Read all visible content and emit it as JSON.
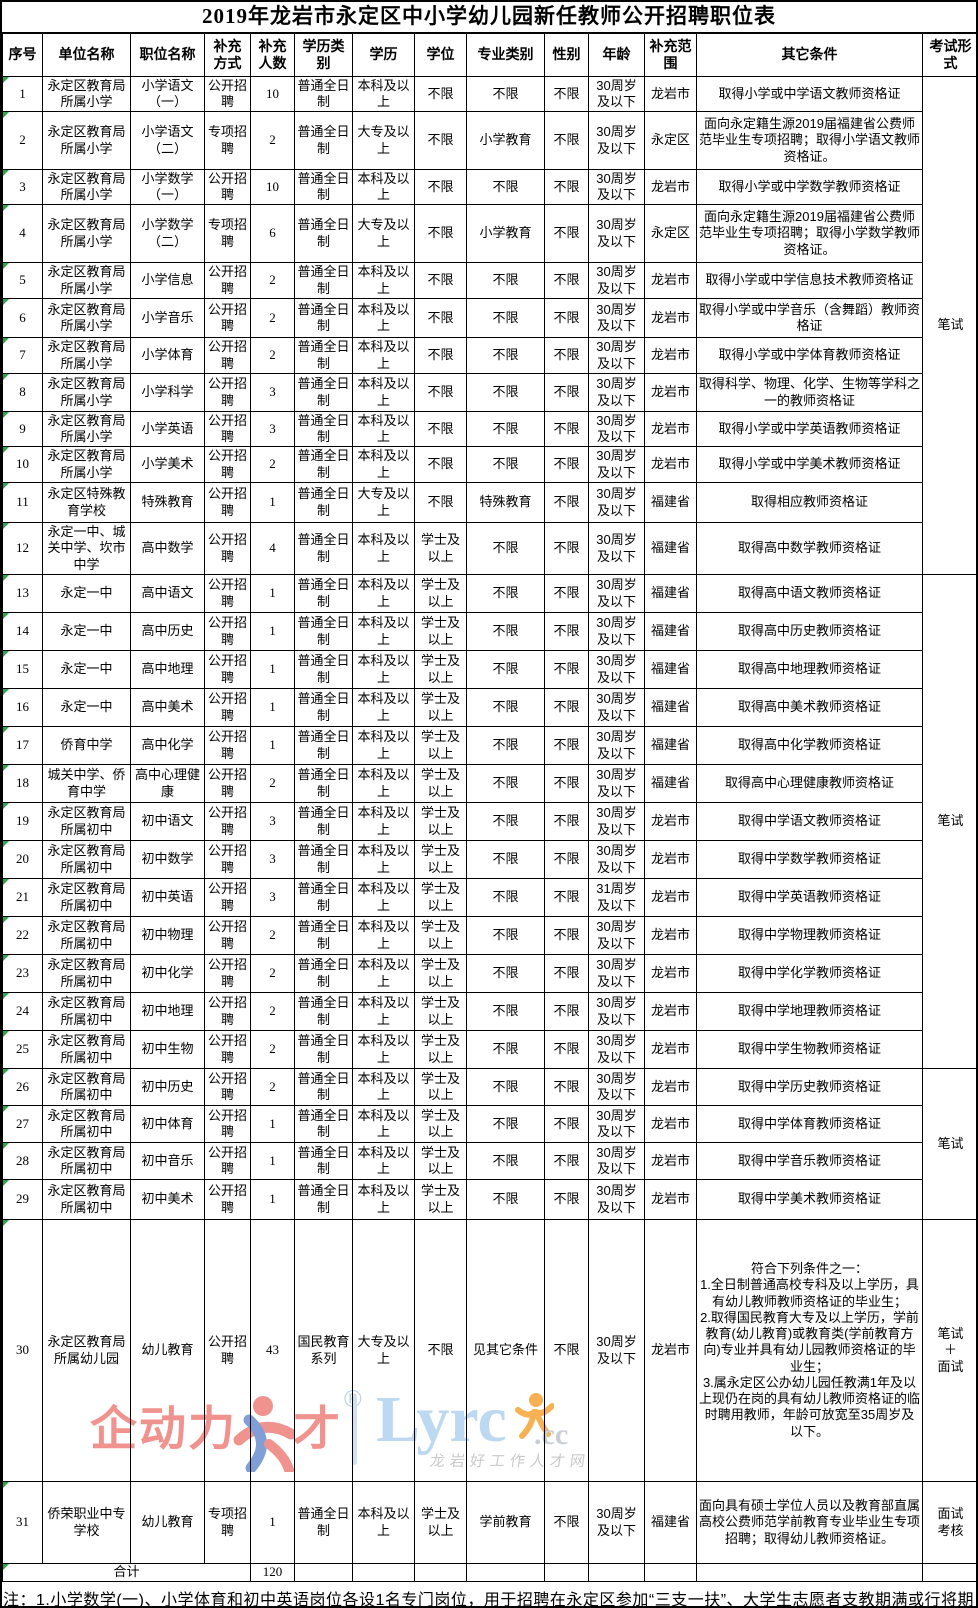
{
  "title": "2019年龙岩市永定区中小学幼儿园新任教师公开招聘职位表",
  "table": {
    "headers": [
      "序号",
      "单位名称",
      "职位名称",
      "补充方式",
      "补充人数",
      "学历类别",
      "学历",
      "学位",
      "专业类别",
      "性别",
      "年龄",
      "补充范围",
      "其它条件",
      "考试形式"
    ],
    "rows": [
      {
        "num": "1",
        "unit": "永定区教育局所属小学",
        "position": "小学语文（一）",
        "method": "公开招聘",
        "count": "10",
        "edu_type": "普通全日制",
        "edu": "本科及以上",
        "degree": "不限",
        "major": "不限",
        "gender": "不限",
        "age": "30周岁及以下",
        "scope": "龙岩市",
        "other": "取得小学或中学语文教师资格证"
      },
      {
        "num": "2",
        "unit": "永定区教育局所属小学",
        "position": "小学语文（二）",
        "method": "专项招聘",
        "count": "2",
        "edu_type": "普通全日制",
        "edu": "大专及以上",
        "degree": "不限",
        "major": "小学教育",
        "gender": "不限",
        "age": "30周岁及以下",
        "scope": "永定区",
        "other": "面向永定籍生源2019届福建省公费师范毕业生专项招聘；取得小学语文教师资格证。"
      },
      {
        "num": "3",
        "unit": "永定区教育局所属小学",
        "position": "小学数学（一）",
        "method": "公开招聘",
        "count": "10",
        "edu_type": "普通全日制",
        "edu": "本科及以上",
        "degree": "不限",
        "major": "不限",
        "gender": "不限",
        "age": "30周岁及以下",
        "scope": "龙岩市",
        "other": "取得小学或中学数学教师资格证"
      },
      {
        "num": "4",
        "unit": "永定区教育局所属小学",
        "position": "小学数学（二）",
        "method": "专项招聘",
        "count": "6",
        "edu_type": "普通全日制",
        "edu": "大专及以上",
        "degree": "不限",
        "major": "小学教育",
        "gender": "不限",
        "age": "30周岁及以下",
        "scope": "永定区",
        "other": "面向永定籍生源2019届福建省公费师范毕业生专项招聘；取得小学数学教师资格证。"
      },
      {
        "num": "5",
        "unit": "永定区教育局所属小学",
        "position": "小学信息",
        "method": "公开招聘",
        "count": "2",
        "edu_type": "普通全日制",
        "edu": "本科及以上",
        "degree": "不限",
        "major": "不限",
        "gender": "不限",
        "age": "30周岁及以下",
        "scope": "龙岩市",
        "other": "取得小学或中学信息技术教师资格证"
      },
      {
        "num": "6",
        "unit": "永定区教育局所属小学",
        "position": "小学音乐",
        "method": "公开招聘",
        "count": "2",
        "edu_type": "普通全日制",
        "edu": "本科及以上",
        "degree": "不限",
        "major": "不限",
        "gender": "不限",
        "age": "30周岁及以下",
        "scope": "龙岩市",
        "other": "取得小学或中学音乐（含舞蹈）教师资格证"
      },
      {
        "num": "7",
        "unit": "永定区教育局所属小学",
        "position": "小学体育",
        "method": "公开招聘",
        "count": "2",
        "edu_type": "普通全日制",
        "edu": "本科及以上",
        "degree": "不限",
        "major": "不限",
        "gender": "不限",
        "age": "30周岁及以下",
        "scope": "龙岩市",
        "other": "取得小学或中学体育教师资格证"
      },
      {
        "num": "8",
        "unit": "永定区教育局所属小学",
        "position": "小学科学",
        "method": "公开招聘",
        "count": "3",
        "edu_type": "普通全日制",
        "edu": "本科及以上",
        "degree": "不限",
        "major": "不限",
        "gender": "不限",
        "age": "30周岁及以下",
        "scope": "龙岩市",
        "other": "取得科学、物理、化学、生物等学科之一的教师资格证"
      },
      {
        "num": "9",
        "unit": "永定区教育局所属小学",
        "position": "小学英语",
        "method": "公开招聘",
        "count": "3",
        "edu_type": "普通全日制",
        "edu": "本科及以上",
        "degree": "不限",
        "major": "不限",
        "gender": "不限",
        "age": "30周岁及以下",
        "scope": "龙岩市",
        "other": "取得小学或中学英语教师资格证"
      },
      {
        "num": "10",
        "unit": "永定区教育局所属小学",
        "position": "小学美术",
        "method": "公开招聘",
        "count": "2",
        "edu_type": "普通全日制",
        "edu": "本科及以上",
        "degree": "不限",
        "major": "不限",
        "gender": "不限",
        "age": "30周岁及以下",
        "scope": "龙岩市",
        "other": "取得小学或中学美术教师资格证"
      },
      {
        "num": "11",
        "unit": "永定区特殊教育学校",
        "position": "特殊教育",
        "method": "公开招聘",
        "count": "1",
        "edu_type": "普通全日制",
        "edu": "大专及以上",
        "degree": "不限",
        "major": "特殊教育",
        "gender": "不限",
        "age": "30周岁及以下",
        "scope": "福建省",
        "other": "取得相应教师资格证"
      },
      {
        "num": "12",
        "unit": "永定一中、城关中学、坎市中学",
        "position": "高中数学",
        "method": "公开招聘",
        "count": "4",
        "edu_type": "普通全日制",
        "edu": "本科及以上",
        "degree": "学士及以上",
        "major": "不限",
        "gender": "不限",
        "age": "30周岁及以下",
        "scope": "福建省",
        "other": "取得高中数学教师资格证"
      },
      {
        "num": "13",
        "unit": "永定一中",
        "position": "高中语文",
        "method": "公开招聘",
        "count": "1",
        "edu_type": "普通全日制",
        "edu": "本科及以上",
        "degree": "学士及以上",
        "major": "不限",
        "gender": "不限",
        "age": "30周岁及以下",
        "scope": "福建省",
        "other": "取得高中语文教师资格证"
      },
      {
        "num": "14",
        "unit": "永定一中",
        "position": "高中历史",
        "method": "公开招聘",
        "count": "1",
        "edu_type": "普通全日制",
        "edu": "本科及以上",
        "degree": "学士及以上",
        "major": "不限",
        "gender": "不限",
        "age": "30周岁及以下",
        "scope": "福建省",
        "other": "取得高中历史教师资格证"
      },
      {
        "num": "15",
        "unit": "永定一中",
        "position": "高中地理",
        "method": "公开招聘",
        "count": "1",
        "edu_type": "普通全日制",
        "edu": "本科及以上",
        "degree": "学士及以上",
        "major": "不限",
        "gender": "不限",
        "age": "30周岁及以下",
        "scope": "福建省",
        "other": "取得高中地理教师资格证"
      },
      {
        "num": "16",
        "unit": "永定一中",
        "position": "高中美术",
        "method": "公开招聘",
        "count": "1",
        "edu_type": "普通全日制",
        "edu": "本科及以上",
        "degree": "学士及以上",
        "major": "不限",
        "gender": "不限",
        "age": "30周岁及以下",
        "scope": "福建省",
        "other": "取得高中美术教师资格证"
      },
      {
        "num": "17",
        "unit": "侨育中学",
        "position": "高中化学",
        "method": "公开招聘",
        "count": "1",
        "edu_type": "普通全日制",
        "edu": "本科及以上",
        "degree": "学士及以上",
        "major": "不限",
        "gender": "不限",
        "age": "30周岁及以下",
        "scope": "福建省",
        "other": "取得高中化学教师资格证"
      },
      {
        "num": "18",
        "unit": "城关中学、侨育中学",
        "position": "高中心理健康",
        "method": "公开招聘",
        "count": "2",
        "edu_type": "普通全日制",
        "edu": "本科及以上",
        "degree": "学士及以上",
        "major": "不限",
        "gender": "不限",
        "age": "30周岁及以下",
        "scope": "福建省",
        "other": "取得高中心理健康教师资格证"
      },
      {
        "num": "19",
        "unit": "永定区教育局所属初中",
        "position": "初中语文",
        "method": "公开招聘",
        "count": "3",
        "edu_type": "普通全日制",
        "edu": "本科及以上",
        "degree": "学士及以上",
        "major": "不限",
        "gender": "不限",
        "age": "30周岁及以下",
        "scope": "龙岩市",
        "other": "取得中学语文教师资格证"
      },
      {
        "num": "20",
        "unit": "永定区教育局所属初中",
        "position": "初中数学",
        "method": "公开招聘",
        "count": "3",
        "edu_type": "普通全日制",
        "edu": "本科及以上",
        "degree": "学士及以上",
        "major": "不限",
        "gender": "不限",
        "age": "30周岁及以下",
        "scope": "龙岩市",
        "other": "取得中学数学教师资格证"
      },
      {
        "num": "21",
        "unit": "永定区教育局所属初中",
        "position": "初中英语",
        "method": "公开招聘",
        "count": "3",
        "edu_type": "普通全日制",
        "edu": "本科及以上",
        "degree": "学士及以上",
        "major": "不限",
        "gender": "不限",
        "age": "31周岁及以下",
        "scope": "龙岩市",
        "other": "取得中学英语教师资格证"
      },
      {
        "num": "22",
        "unit": "永定区教育局所属初中",
        "position": "初中物理",
        "method": "公开招聘",
        "count": "2",
        "edu_type": "普通全日制",
        "edu": "本科及以上",
        "degree": "学士及以上",
        "major": "不限",
        "gender": "不限",
        "age": "30周岁及以下",
        "scope": "龙岩市",
        "other": "取得中学物理教师资格证"
      },
      {
        "num": "23",
        "unit": "永定区教育局所属初中",
        "position": "初中化学",
        "method": "公开招聘",
        "count": "2",
        "edu_type": "普通全日制",
        "edu": "本科及以上",
        "degree": "学士及以上",
        "major": "不限",
        "gender": "不限",
        "age": "30周岁及以下",
        "scope": "龙岩市",
        "other": "取得中学化学教师资格证"
      },
      {
        "num": "24",
        "unit": "永定区教育局所属初中",
        "position": "初中地理",
        "method": "公开招聘",
        "count": "2",
        "edu_type": "普通全日制",
        "edu": "本科及以上",
        "degree": "学士及以上",
        "major": "不限",
        "gender": "不限",
        "age": "30周岁及以下",
        "scope": "龙岩市",
        "other": "取得中学地理教师资格证"
      },
      {
        "num": "25",
        "unit": "永定区教育局所属初中",
        "position": "初中生物",
        "method": "公开招聘",
        "count": "2",
        "edu_type": "普通全日制",
        "edu": "本科及以上",
        "degree": "学士及以上",
        "major": "不限",
        "gender": "不限",
        "age": "30周岁及以下",
        "scope": "龙岩市",
        "other": "取得中学生物教师资格证"
      },
      {
        "num": "26",
        "unit": "永定区教育局所属初中",
        "position": "初中历史",
        "method": "公开招聘",
        "count": "2",
        "edu_type": "普通全日制",
        "edu": "本科及以上",
        "degree": "学士及以上",
        "major": "不限",
        "gender": "不限",
        "age": "30周岁及以下",
        "scope": "龙岩市",
        "other": "取得中学历史教师资格证"
      },
      {
        "num": "27",
        "unit": "永定区教育局所属初中",
        "position": "初中体育",
        "method": "公开招聘",
        "count": "1",
        "edu_type": "普通全日制",
        "edu": "本科及以上",
        "degree": "学士及以上",
        "major": "不限",
        "gender": "不限",
        "age": "30周岁及以下",
        "scope": "龙岩市",
        "other": "取得中学体育教师资格证"
      },
      {
        "num": "28",
        "unit": "永定区教育局所属初中",
        "position": "初中音乐",
        "method": "公开招聘",
        "count": "1",
        "edu_type": "普通全日制",
        "edu": "本科及以上",
        "degree": "学士及以上",
        "major": "不限",
        "gender": "不限",
        "age": "30周岁及以下",
        "scope": "龙岩市",
        "other": "取得中学音乐教师资格证"
      },
      {
        "num": "29",
        "unit": "永定区教育局所属初中",
        "position": "初中美术",
        "method": "公开招聘",
        "count": "1",
        "edu_type": "普通全日制",
        "edu": "本科及以上",
        "degree": "学士及以上",
        "major": "不限",
        "gender": "不限",
        "age": "30周岁及以下",
        "scope": "龙岩市",
        "other": "取得中学美术教师资格证"
      },
      {
        "num": "30",
        "unit": "永定区教育局所属幼儿园",
        "position": "幼儿教育",
        "method": "公开招聘",
        "count": "43",
        "edu_type": "国民教育系列",
        "edu": "大专及以上",
        "degree": "不限",
        "major": "见其它条件",
        "gender": "不限",
        "age": "30周岁及以下",
        "scope": "龙岩市",
        "other": "符合下列条件之一：\n1.全日制普通高校专科及以上学历，具有幼儿教师教师资格证的毕业生；\n2.取得国民教育大专及以上学历，学前教育(幼儿教育)或教育类(学前教育方向)专业并具有幼儿园教师资格证的毕业生；\n3.属永定区公办幼儿园任教满1年及以上现仍在岗的具有幼儿教师资格证的临时聘用教师，年龄可放宽至35周岁及以下。"
      },
      {
        "num": "31",
        "unit": "侨荣职业中专学校",
        "position": "幼儿教育",
        "method": "专项招聘",
        "count": "1",
        "edu_type": "普通全日制",
        "edu": "本科及以上",
        "degree": "学士及以上",
        "major": "学前教育",
        "gender": "不限",
        "age": "30周岁及以下",
        "scope": "福建省",
        "other": "面向具有硕士学位人员以及教育部直属高校公费师范学前教育专业毕业生专项招聘；取得幼儿教师资格证。"
      }
    ],
    "exam_merges": [
      {
        "start": 0,
        "span": 12,
        "label": "笔试"
      },
      {
        "start": 12,
        "span": 13,
        "label": "笔试"
      },
      {
        "start": 25,
        "span": 4,
        "label": "笔试"
      },
      {
        "start": 29,
        "span": 1,
        "label": "笔试\n＋\n面试"
      },
      {
        "start": 30,
        "span": 1,
        "label": "面试\n考核"
      }
    ],
    "total_row": {
      "label": "合计",
      "count": "120"
    }
  },
  "footer": {
    "note": "注：1.小学数学(一)、小学体育和初中英语岗位各设1名专门岗位，用于招聘在永定区参加“三支一扶”、大学生志愿者支教期满或行将期"
  },
  "watermarks": {
    "qidongli": {
      "text": "企动力",
      "text2": "才",
      "reg": "®",
      "color": "#f0938f"
    },
    "lyrc": {
      "brand": "Lyrc",
      "suffix": ".cc",
      "slogan": "龙岩好工作人才网",
      "brand_color": "#bdd8f1",
      "figure_color": "#f5b152"
    }
  }
}
